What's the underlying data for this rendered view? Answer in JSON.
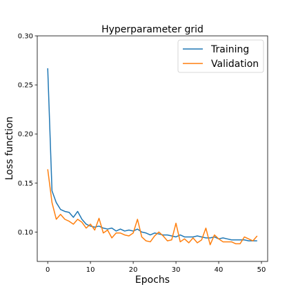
{
  "chart_data": {
    "type": "line",
    "title": "Hyperparameter grid",
    "xlabel": "Epochs",
    "ylabel": "Loss function",
    "xlim": [
      -2.45,
      51.45
    ],
    "ylim": [
      0.07,
      0.3
    ],
    "xticks": [
      0,
      10,
      20,
      30,
      40,
      50
    ],
    "yticks": [
      0.1,
      0.15,
      0.2,
      0.25,
      0.3
    ],
    "ytick_labels": [
      "0.10",
      "0.15",
      "0.20",
      "0.25",
      "0.30"
    ],
    "grid": false,
    "legend_position": "top-right",
    "x": [
      0,
      1,
      2,
      3,
      4,
      5,
      6,
      7,
      8,
      9,
      10,
      11,
      12,
      13,
      14,
      15,
      16,
      17,
      18,
      19,
      20,
      21,
      22,
      23,
      24,
      25,
      26,
      27,
      28,
      29,
      30,
      31,
      32,
      33,
      34,
      35,
      36,
      37,
      38,
      39,
      40,
      41,
      42,
      43,
      44,
      45,
      46,
      47,
      48,
      49
    ],
    "series": [
      {
        "name": "Training",
        "color": "#1f77b4",
        "values": [
          0.267,
          0.142,
          0.13,
          0.123,
          0.121,
          0.12,
          0.115,
          0.121,
          0.113,
          0.108,
          0.106,
          0.105,
          0.106,
          0.104,
          0.103,
          0.104,
          0.101,
          0.103,
          0.101,
          0.102,
          0.101,
          0.103,
          0.1,
          0.099,
          0.097,
          0.099,
          0.098,
          0.097,
          0.097,
          0.096,
          0.095,
          0.097,
          0.095,
          0.095,
          0.095,
          0.096,
          0.095,
          0.094,
          0.094,
          0.095,
          0.093,
          0.094,
          0.093,
          0.092,
          0.092,
          0.092,
          0.092,
          0.091,
          0.091,
          0.091
        ]
      },
      {
        "name": "Validation",
        "color": "#ff7f0e",
        "values": [
          0.164,
          0.13,
          0.113,
          0.118,
          0.113,
          0.111,
          0.108,
          0.113,
          0.11,
          0.104,
          0.108,
          0.102,
          0.114,
          0.099,
          0.102,
          0.094,
          0.099,
          0.099,
          0.097,
          0.096,
          0.099,
          0.113,
          0.095,
          0.091,
          0.09,
          0.096,
          0.1,
          0.096,
          0.091,
          0.092,
          0.109,
          0.09,
          0.093,
          0.089,
          0.094,
          0.089,
          0.092,
          0.104,
          0.087,
          0.097,
          0.093,
          0.09,
          0.09,
          0.09,
          0.088,
          0.088,
          0.095,
          0.093,
          0.091,
          0.096
        ]
      }
    ]
  }
}
